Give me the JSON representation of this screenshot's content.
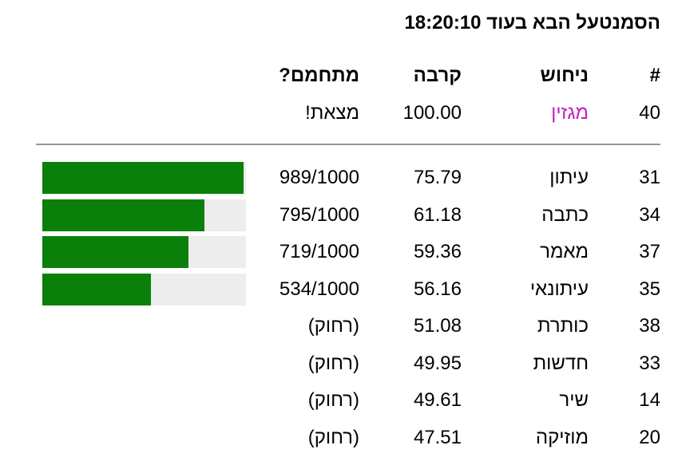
{
  "page": {
    "title": "הסמנטעל הבא בעוד 18:20:10"
  },
  "table": {
    "headers": {
      "num": "#",
      "guess": "ניחוש",
      "closeness": "קרבה",
      "warm": "מתחמם?"
    },
    "found_row": {
      "num": "40",
      "guess": "מגזין",
      "closeness": "100.00",
      "warm": "מצאת!"
    },
    "rows": [
      {
        "num": "31",
        "guess": "עיתון",
        "closeness": "75.79",
        "warm": "989/1000",
        "bar_pct": 98.9
      },
      {
        "num": "34",
        "guess": "כתבה",
        "closeness": "61.18",
        "warm": "795/1000",
        "bar_pct": 79.5
      },
      {
        "num": "37",
        "guess": "מאמר",
        "closeness": "59.36",
        "warm": "719/1000",
        "bar_pct": 71.9
      },
      {
        "num": "35",
        "guess": "עיתונאי",
        "closeness": "56.16",
        "warm": "534/1000",
        "bar_pct": 53.4
      },
      {
        "num": "38",
        "guess": "כותרת",
        "closeness": "51.08",
        "warm": "(רחוק)",
        "bar_pct": 0
      },
      {
        "num": "33",
        "guess": "חדשות",
        "closeness": "49.95",
        "warm": "(רחוק)",
        "bar_pct": 0
      },
      {
        "num": "14",
        "guess": "שיר",
        "closeness": "49.61",
        "warm": "(רחוק)",
        "bar_pct": 0
      },
      {
        "num": "20",
        "guess": "מוזיקה",
        "closeness": "47.51",
        "warm": "(רחוק)",
        "bar_pct": 0
      }
    ]
  },
  "colors": {
    "found_word": "#C320C3",
    "bar_fill": "#0A800A",
    "bar_track": "#EDEDED",
    "separator": "#979797"
  }
}
